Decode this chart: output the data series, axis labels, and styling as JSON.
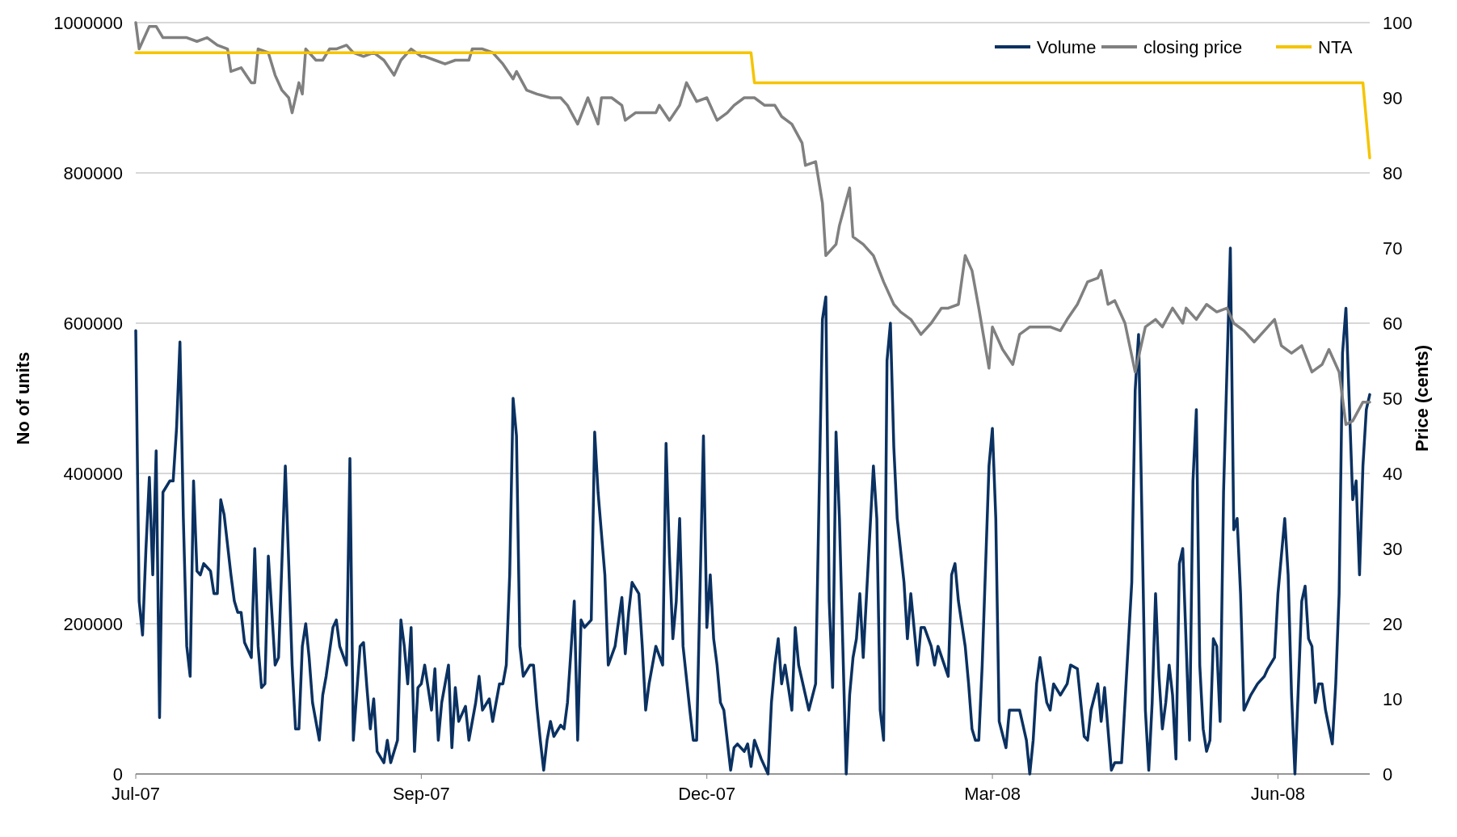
{
  "chart_data": {
    "type": "line",
    "ylabel": "No of units",
    "y2label": "Price (cents)",
    "xlim": [
      "2007-07-02",
      "2008-06-29"
    ],
    "xticks": [
      {
        "value": "2007-07-02",
        "label": "Jul-07"
      },
      {
        "value": "2007-09-24",
        "label": "Sep-07"
      },
      {
        "value": "2007-12-17",
        "label": "Dec-07"
      },
      {
        "value": "2008-03-10",
        "label": "Mar-08"
      },
      {
        "value": "2008-06-02",
        "label": "Jun-08"
      }
    ],
    "ylim": [
      0,
      1000000
    ],
    "yticks": [
      0,
      200000,
      400000,
      600000,
      800000,
      1000000
    ],
    "y2lim": [
      0,
      100
    ],
    "y2ticks": [
      0,
      10,
      20,
      30,
      40,
      50,
      60,
      70,
      80,
      90,
      100
    ],
    "grid": "y",
    "legend": "top right",
    "marker": "none",
    "line_style": "solid",
    "series": [
      {
        "name": "Volume",
        "color": "#0a3161",
        "x": [
          "2007-07-02",
          "2007-07-03",
          "2007-07-04",
          "2007-07-05",
          "2007-07-06",
          "2007-07-07",
          "2007-07-08",
          "2007-07-09",
          "2007-07-10",
          "2007-07-12",
          "2007-07-13",
          "2007-07-14",
          "2007-07-15",
          "2007-07-16",
          "2007-07-17",
          "2007-07-18",
          "2007-07-19",
          "2007-07-20",
          "2007-07-21",
          "2007-07-22",
          "2007-07-24",
          "2007-07-25",
          "2007-07-26",
          "2007-07-27",
          "2007-07-28",
          "2007-07-30",
          "2007-07-31",
          "2007-08-01",
          "2007-08-02",
          "2007-08-03",
          "2007-08-05",
          "2007-08-06",
          "2007-08-07",
          "2007-08-08",
          "2007-08-09",
          "2007-08-10",
          "2007-08-12",
          "2007-08-13",
          "2007-08-15",
          "2007-08-16",
          "2007-08-17",
          "2007-08-18",
          "2007-08-19",
          "2007-08-20",
          "2007-08-21",
          "2007-08-22",
          "2007-08-23",
          "2007-08-25",
          "2007-08-26",
          "2007-08-27",
          "2007-08-29",
          "2007-08-30",
          "2007-08-31",
          "2007-09-02",
          "2007-09-03",
          "2007-09-04",
          "2007-09-06",
          "2007-09-07",
          "2007-09-08",
          "2007-09-09",
          "2007-09-10",
          "2007-09-11",
          "2007-09-13",
          "2007-09-14",
          "2007-09-15",
          "2007-09-17",
          "2007-09-18",
          "2007-09-19",
          "2007-09-20",
          "2007-09-21",
          "2007-09-22",
          "2007-09-23",
          "2007-09-24",
          "2007-09-25",
          "2007-09-27",
          "2007-09-28",
          "2007-09-29",
          "2007-09-30",
          "2007-10-02",
          "2007-10-03",
          "2007-10-04",
          "2007-10-05",
          "2007-10-07",
          "2007-10-08",
          "2007-10-10",
          "2007-10-11",
          "2007-10-12",
          "2007-10-14",
          "2007-10-15",
          "2007-10-17",
          "2007-10-18",
          "2007-10-19",
          "2007-10-20",
          "2007-10-21",
          "2007-10-22",
          "2007-10-23",
          "2007-10-24",
          "2007-10-26",
          "2007-10-27",
          "2007-10-28",
          "2007-10-29",
          "2007-10-30",
          "2007-10-31",
          "2007-11-01",
          "2007-11-02",
          "2007-11-04",
          "2007-11-05",
          "2007-11-06",
          "2007-11-08",
          "2007-11-09",
          "2007-11-10",
          "2007-11-11",
          "2007-11-13",
          "2007-11-14",
          "2007-11-15",
          "2007-11-17",
          "2007-11-18",
          "2007-11-20",
          "2007-11-22",
          "2007-11-23",
          "2007-11-24",
          "2007-11-25",
          "2007-11-27",
          "2007-11-28",
          "2007-11-29",
          "2007-11-30",
          "2007-12-02",
          "2007-12-04",
          "2007-12-05",
          "2007-12-06",
          "2007-12-07",
          "2007-12-08",
          "2007-12-09",
          "2007-12-10",
          "2007-12-12",
          "2007-12-13",
          "2007-12-14",
          "2007-12-16",
          "2007-12-17",
          "2007-12-18",
          "2007-12-19",
          "2007-12-20",
          "2007-12-21",
          "2007-12-22",
          "2007-12-24",
          "2007-12-25",
          "2007-12-26",
          "2007-12-28",
          "2007-12-29",
          "2007-12-30",
          "2007-12-31",
          "2008-01-02",
          "2008-01-04",
          "2008-01-05",
          "2008-01-06",
          "2008-01-07",
          "2008-01-08",
          "2008-01-09",
          "2008-01-11",
          "2008-01-12",
          "2008-01-13",
          "2008-01-15",
          "2008-01-16",
          "2008-01-18",
          "2008-01-19",
          "2008-01-20",
          "2008-01-21",
          "2008-01-22",
          "2008-01-23",
          "2008-01-24",
          "2008-01-25",
          "2008-01-27",
          "2008-01-28",
          "2008-01-29",
          "2008-01-30",
          "2008-01-31",
          "2008-02-01",
          "2008-02-02",
          "2008-02-04",
          "2008-02-05",
          "2008-02-06",
          "2008-02-07",
          "2008-02-08",
          "2008-02-09",
          "2008-02-10",
          "2008-02-11",
          "2008-02-13",
          "2008-02-14",
          "2008-02-15",
          "2008-02-17",
          "2008-02-18",
          "2008-02-19",
          "2008-02-21",
          "2008-02-22",
          "2008-02-23",
          "2008-02-26",
          "2008-02-27",
          "2008-02-28",
          "2008-02-29",
          "2008-03-02",
          "2008-03-03",
          "2008-03-04",
          "2008-03-05",
          "2008-03-06",
          "2008-03-07",
          "2008-03-09",
          "2008-03-10",
          "2008-03-11",
          "2008-03-12",
          "2008-03-14",
          "2008-03-15",
          "2008-03-16",
          "2008-03-18",
          "2008-03-20",
          "2008-03-21",
          "2008-03-22",
          "2008-03-23",
          "2008-03-24",
          "2008-03-26",
          "2008-03-27",
          "2008-03-28",
          "2008-03-30",
          "2008-04-01",
          "2008-04-02",
          "2008-04-04",
          "2008-04-05",
          "2008-04-06",
          "2008-04-07",
          "2008-04-08",
          "2008-04-10",
          "2008-04-11",
          "2008-04-12",
          "2008-04-14",
          "2008-04-15",
          "2008-04-17",
          "2008-04-18",
          "2008-04-20",
          "2008-04-21",
          "2008-04-22",
          "2008-04-23",
          "2008-04-24",
          "2008-04-25",
          "2008-04-26",
          "2008-04-27",
          "2008-04-28",
          "2008-04-29",
          "2008-04-30",
          "2008-05-01",
          "2008-05-02",
          "2008-05-03",
          "2008-05-04",
          "2008-05-05",
          "2008-05-07",
          "2008-05-08",
          "2008-05-09",
          "2008-05-10",
          "2008-05-11",
          "2008-05-12",
          "2008-05-13",
          "2008-05-14",
          "2008-05-15",
          "2008-05-16",
          "2008-05-17",
          "2008-05-19",
          "2008-05-20",
          "2008-05-21",
          "2008-05-22",
          "2008-05-23",
          "2008-05-25",
          "2008-05-27",
          "2008-05-29",
          "2008-05-30",
          "2008-06-01",
          "2008-06-02",
          "2008-06-04",
          "2008-06-05",
          "2008-06-06",
          "2008-06-07",
          "2008-06-09",
          "2008-06-10",
          "2008-06-11",
          "2008-06-12",
          "2008-06-13",
          "2008-06-14",
          "2008-06-15",
          "2008-06-16",
          "2008-06-18",
          "2008-06-19",
          "2008-06-20",
          "2008-06-21",
          "2008-06-22",
          "2008-06-24",
          "2008-06-25",
          "2008-06-26",
          "2008-06-27",
          "2008-06-28",
          "2008-06-29"
        ],
        "values": [
          590000,
          230000,
          185000,
          300000,
          395000,
          265000,
          430000,
          75000,
          375000,
          390000,
          390000,
          460000,
          575000,
          340000,
          170000,
          130000,
          390000,
          270000,
          265000,
          280000,
          270000,
          240000,
          240000,
          365000,
          345000,
          265000,
          230000,
          215000,
          215000,
          175000,
          155000,
          300000,
          170000,
          115000,
          120000,
          290000,
          145000,
          155000,
          410000,
          280000,
          145000,
          60000,
          60000,
          170000,
          200000,
          155000,
          95000,
          45000,
          105000,
          130000,
          195000,
          205000,
          170000,
          145000,
          420000,
          45000,
          170000,
          175000,
          115000,
          60000,
          100000,
          30000,
          15000,
          45000,
          15000,
          45000,
          205000,
          170000,
          120000,
          195000,
          30000,
          115000,
          120000,
          145000,
          85000,
          140000,
          45000,
          95000,
          145000,
          35000,
          115000,
          70000,
          90000,
          45000,
          95000,
          130000,
          85000,
          100000,
          70000,
          120000,
          120000,
          145000,
          265000,
          500000,
          450000,
          170000,
          130000,
          145000,
          145000,
          90000,
          45000,
          5000,
          45000,
          70000,
          50000,
          65000,
          60000,
          95000,
          230000,
          45000,
          205000,
          195000,
          205000,
          455000,
          375000,
          265000,
          145000,
          170000,
          235000,
          160000,
          215000,
          255000,
          240000,
          170000,
          85000,
          120000,
          170000,
          145000,
          440000,
          290000,
          180000,
          230000,
          340000,
          170000,
          85000,
          45000,
          45000,
          450000,
          195000,
          265000,
          180000,
          145000,
          95000,
          85000,
          5000,
          35000,
          40000,
          30000,
          40000,
          10000,
          45000,
          20000,
          0,
          95000,
          145000,
          180000,
          120000,
          145000,
          85000,
          195000,
          145000,
          105000,
          85000,
          120000,
          365000,
          605000,
          635000,
          230000,
          115000,
          455000,
          340000,
          0,
          105000,
          155000,
          180000,
          240000,
          155000,
          240000,
          410000,
          340000,
          85000,
          45000,
          550000,
          600000,
          435000,
          340000,
          255000,
          180000,
          240000,
          145000,
          195000,
          195000,
          170000,
          145000,
          170000,
          130000,
          265000,
          280000,
          230000,
          170000,
          120000,
          60000,
          45000,
          45000,
          145000,
          410000,
          460000,
          340000,
          70000,
          35000,
          85000,
          85000,
          85000,
          45000,
          0,
          45000,
          120000,
          155000,
          95000,
          85000,
          120000,
          105000,
          120000,
          145000,
          140000,
          95000,
          50000,
          45000,
          85000,
          120000,
          70000,
          115000,
          5000,
          15000,
          15000,
          95000,
          255000,
          510000,
          585000,
          340000,
          85000,
          5000,
          95000,
          240000,
          130000,
          60000,
          95000,
          145000,
          105000,
          20000,
          280000,
          300000,
          45000,
          390000,
          485000,
          145000,
          60000,
          30000,
          45000,
          180000,
          170000,
          70000,
          375000,
          700000,
          325000,
          340000,
          240000,
          85000,
          105000,
          120000,
          130000,
          140000,
          155000,
          240000,
          340000,
          265000,
          105000,
          0,
          230000,
          250000,
          180000,
          170000,
          95000,
          120000,
          120000,
          85000,
          40000,
          120000,
          240000,
          560000,
          620000,
          365000,
          390000,
          265000,
          410000,
          485000,
          505000
        ]
      },
      {
        "name": "closing price",
        "color": "#808080",
        "axis": "y2",
        "x": [
          "2007-07-02",
          "2007-07-03",
          "2007-07-06",
          "2007-07-08",
          "2007-07-10",
          "2007-07-12",
          "2007-07-15",
          "2007-07-17",
          "2007-07-20",
          "2007-07-23",
          "2007-07-26",
          "2007-07-29",
          "2007-07-30",
          "2007-08-02",
          "2007-08-05",
          "2007-08-06",
          "2007-08-07",
          "2007-08-10",
          "2007-08-12",
          "2007-08-14",
          "2007-08-16",
          "2007-08-17",
          "2007-08-19",
          "2007-08-20",
          "2007-08-21",
          "2007-08-24",
          "2007-08-26",
          "2007-08-28",
          "2007-08-30",
          "2007-09-02",
          "2007-09-04",
          "2007-09-07",
          "2007-09-10",
          "2007-09-13",
          "2007-09-16",
          "2007-09-18",
          "2007-09-21",
          "2007-09-24",
          "2007-09-25",
          "2007-09-28",
          "2007-10-01",
          "2007-10-04",
          "2007-10-08",
          "2007-10-09",
          "2007-10-12",
          "2007-10-15",
          "2007-10-18",
          "2007-10-21",
          "2007-10-22",
          "2007-10-25",
          "2007-10-28",
          "2007-11-01",
          "2007-11-04",
          "2007-11-06",
          "2007-11-09",
          "2007-11-12",
          "2007-11-15",
          "2007-11-16",
          "2007-11-19",
          "2007-11-22",
          "2007-11-23",
          "2007-11-26",
          "2007-11-29",
          "2007-12-02",
          "2007-12-03",
          "2007-12-06",
          "2007-12-09",
          "2007-12-11",
          "2007-12-14",
          "2007-12-17",
          "2007-12-20",
          "2007-12-23",
          "2007-12-25",
          "2007-12-28",
          "2007-12-31",
          "2008-01-03",
          "2008-01-06",
          "2008-01-08",
          "2008-01-11",
          "2008-01-14",
          "2008-01-15",
          "2008-01-18",
          "2008-01-20",
          "2008-01-21",
          "2008-01-24",
          "2008-01-25",
          "2008-01-28",
          "2008-01-29",
          "2008-02-01",
          "2008-02-04",
          "2008-02-07",
          "2008-02-10",
          "2008-02-12",
          "2008-02-15",
          "2008-02-18",
          "2008-02-21",
          "2008-02-24",
          "2008-02-26",
          "2008-02-29",
          "2008-03-02",
          "2008-03-04",
          "2008-03-06",
          "2008-03-09",
          "2008-03-10",
          "2008-03-13",
          "2008-03-16",
          "2008-03-18",
          "2008-03-21",
          "2008-03-24",
          "2008-03-27",
          "2008-03-30",
          "2008-04-01",
          "2008-04-04",
          "2008-04-07",
          "2008-04-10",
          "2008-04-11",
          "2008-04-13",
          "2008-04-15",
          "2008-04-18",
          "2008-04-21",
          "2008-04-24",
          "2008-04-27",
          "2008-04-29",
          "2008-05-02",
          "2008-05-05",
          "2008-05-06",
          "2008-05-09",
          "2008-05-12",
          "2008-05-15",
          "2008-05-18",
          "2008-05-20",
          "2008-05-23",
          "2008-05-26",
          "2008-05-29",
          "2008-06-01",
          "2008-06-03",
          "2008-06-06",
          "2008-06-09",
          "2008-06-12",
          "2008-06-15",
          "2008-06-17",
          "2008-06-20",
          "2008-06-22",
          "2008-06-24",
          "2008-06-27",
          "2008-06-29"
        ],
        "values": [
          100,
          96.5,
          99.5,
          99.5,
          98,
          98,
          98,
          98,
          97.5,
          98,
          97,
          96.5,
          93.5,
          94,
          92,
          92,
          96.5,
          96,
          93,
          91,
          90,
          88,
          92,
          90.5,
          96.5,
          95,
          95,
          96.5,
          96.5,
          97,
          96,
          95.5,
          96,
          95,
          93,
          95,
          96.5,
          95.5,
          95.5,
          95,
          94.5,
          95,
          95,
          96.5,
          96.5,
          96,
          94.5,
          92.5,
          93.5,
          91,
          90.5,
          90,
          90,
          89,
          86.5,
          90,
          86.5,
          90,
          90,
          89,
          87,
          88,
          88,
          88,
          89,
          87,
          89,
          92,
          89.5,
          90,
          87,
          88,
          89,
          90,
          90,
          89,
          89,
          87.5,
          86.5,
          84,
          81,
          81.5,
          76,
          69,
          70.5,
          73,
          78,
          71.5,
          70.5,
          69,
          65.5,
          62.5,
          61.5,
          60.5,
          58.5,
          60,
          62,
          62,
          62.5,
          69,
          67,
          62,
          54,
          59.5,
          56.5,
          54.5,
          58.5,
          59.5,
          59.5,
          59.5,
          59,
          60.5,
          62.5,
          65.5,
          66,
          67,
          62.5,
          63,
          60,
          53.5,
          59.5,
          60.5,
          59.5,
          62,
          60,
          62,
          60.5,
          62.5,
          61.5,
          62,
          60,
          59,
          57.5,
          59,
          60.5,
          57,
          56,
          57,
          53.5,
          54.5,
          56.5,
          53.5,
          46.5,
          47,
          49.5,
          49.5
        ]
      },
      {
        "name": "NTA",
        "color": "#f5c400",
        "axis": "y2",
        "x": [
          "2007-07-02",
          "2007-12-30",
          "2007-12-31",
          "2008-06-27",
          "2008-06-29"
        ],
        "values": [
          96,
          96,
          92,
          92,
          82
        ]
      }
    ]
  }
}
